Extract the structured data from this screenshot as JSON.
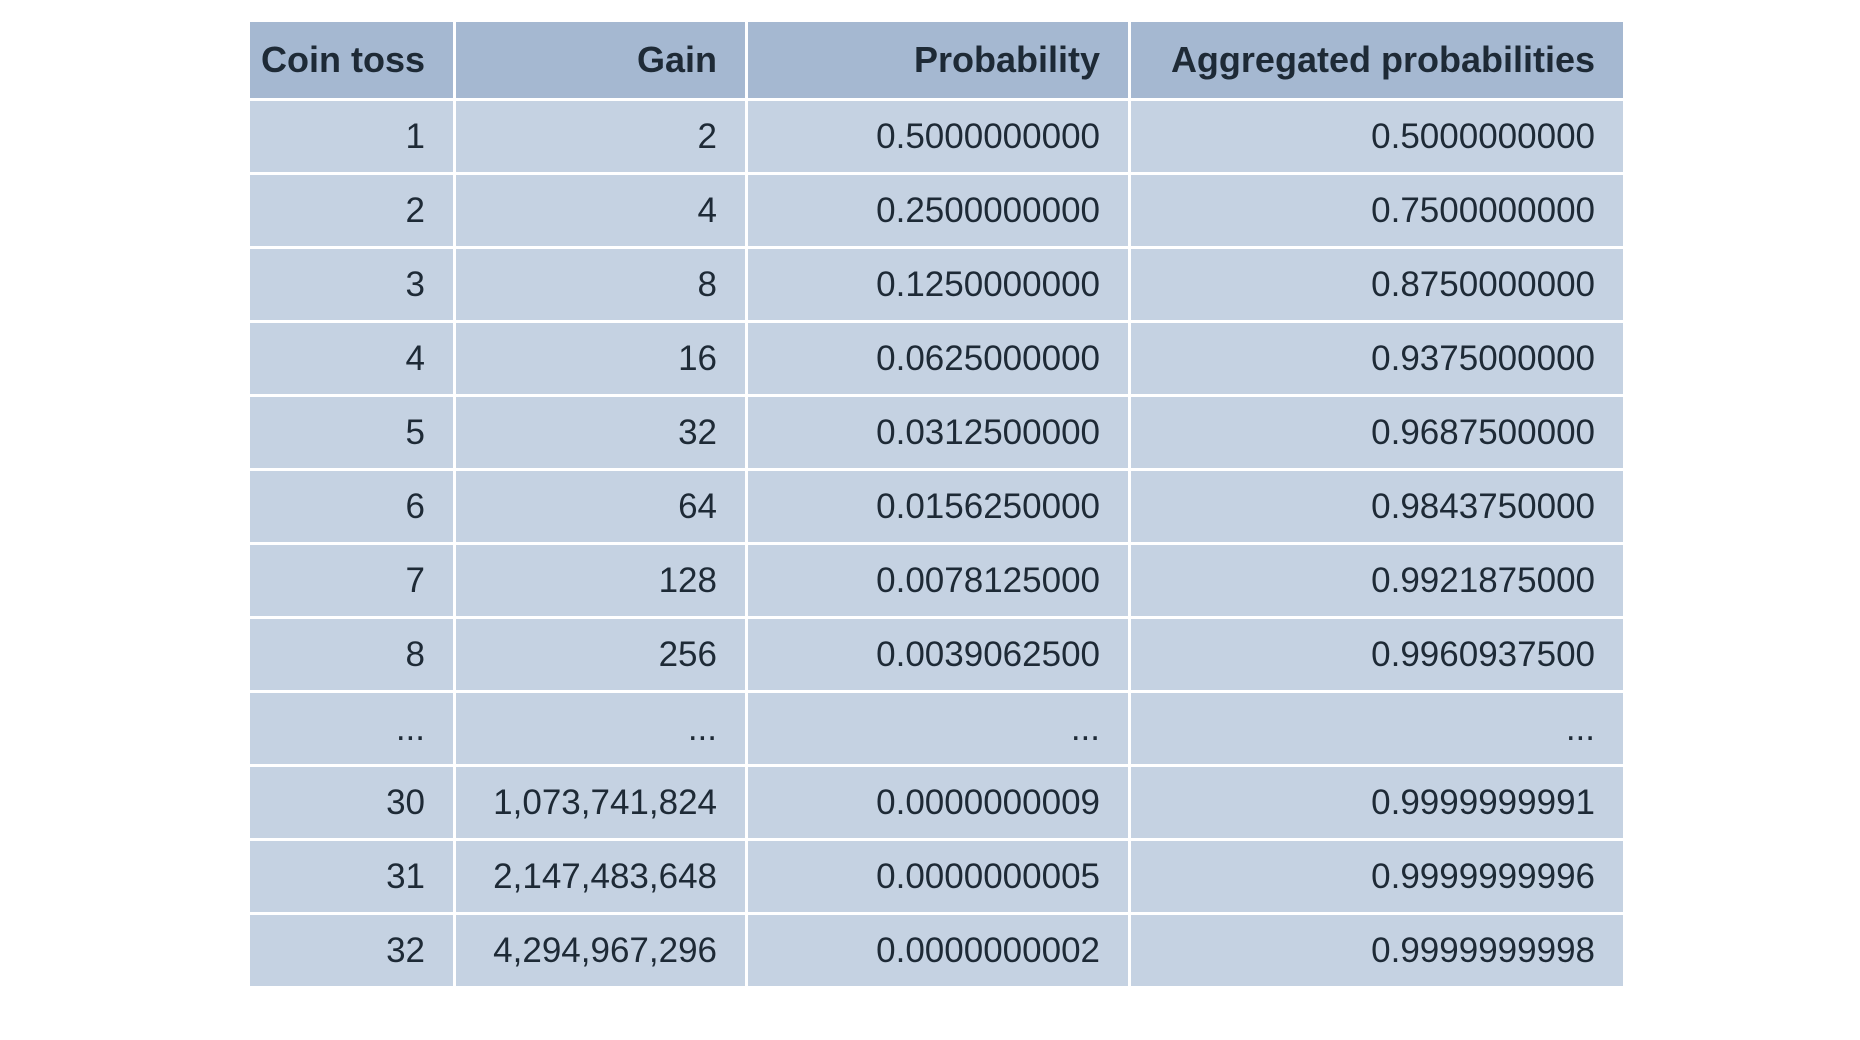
{
  "chart_data": {
    "type": "table",
    "columns": [
      "Coin toss",
      "Gain",
      "Probability",
      "Aggregated probabilities"
    ],
    "rows": [
      [
        "1",
        "2",
        "0.5000000000",
        "0.5000000000"
      ],
      [
        "2",
        "4",
        "0.2500000000",
        "0.7500000000"
      ],
      [
        "3",
        "8",
        "0.1250000000",
        "0.8750000000"
      ],
      [
        "4",
        "16",
        "0.0625000000",
        "0.9375000000"
      ],
      [
        "5",
        "32",
        "0.0312500000",
        "0.9687500000"
      ],
      [
        "6",
        "64",
        "0.0156250000",
        "0.9843750000"
      ],
      [
        "7",
        "128",
        "0.0078125000",
        "0.9921875000"
      ],
      [
        "8",
        "256",
        "0.0039062500",
        "0.9960937500"
      ],
      [
        "...",
        "...",
        "...",
        "..."
      ],
      [
        "30",
        "1,073,741,824",
        "0.0000000009",
        "0.9999999991"
      ],
      [
        "31",
        "2,147,483,648",
        "0.0000000005",
        "0.9999999996"
      ],
      [
        "32",
        "4,294,967,296",
        "0.0000000002",
        "0.9999999998"
      ]
    ],
    "colors": {
      "header_bg": "#a5b8d1",
      "cell_bg": "#c5d2e2",
      "grid": "#ffffff",
      "text": "#1e2a36"
    }
  }
}
